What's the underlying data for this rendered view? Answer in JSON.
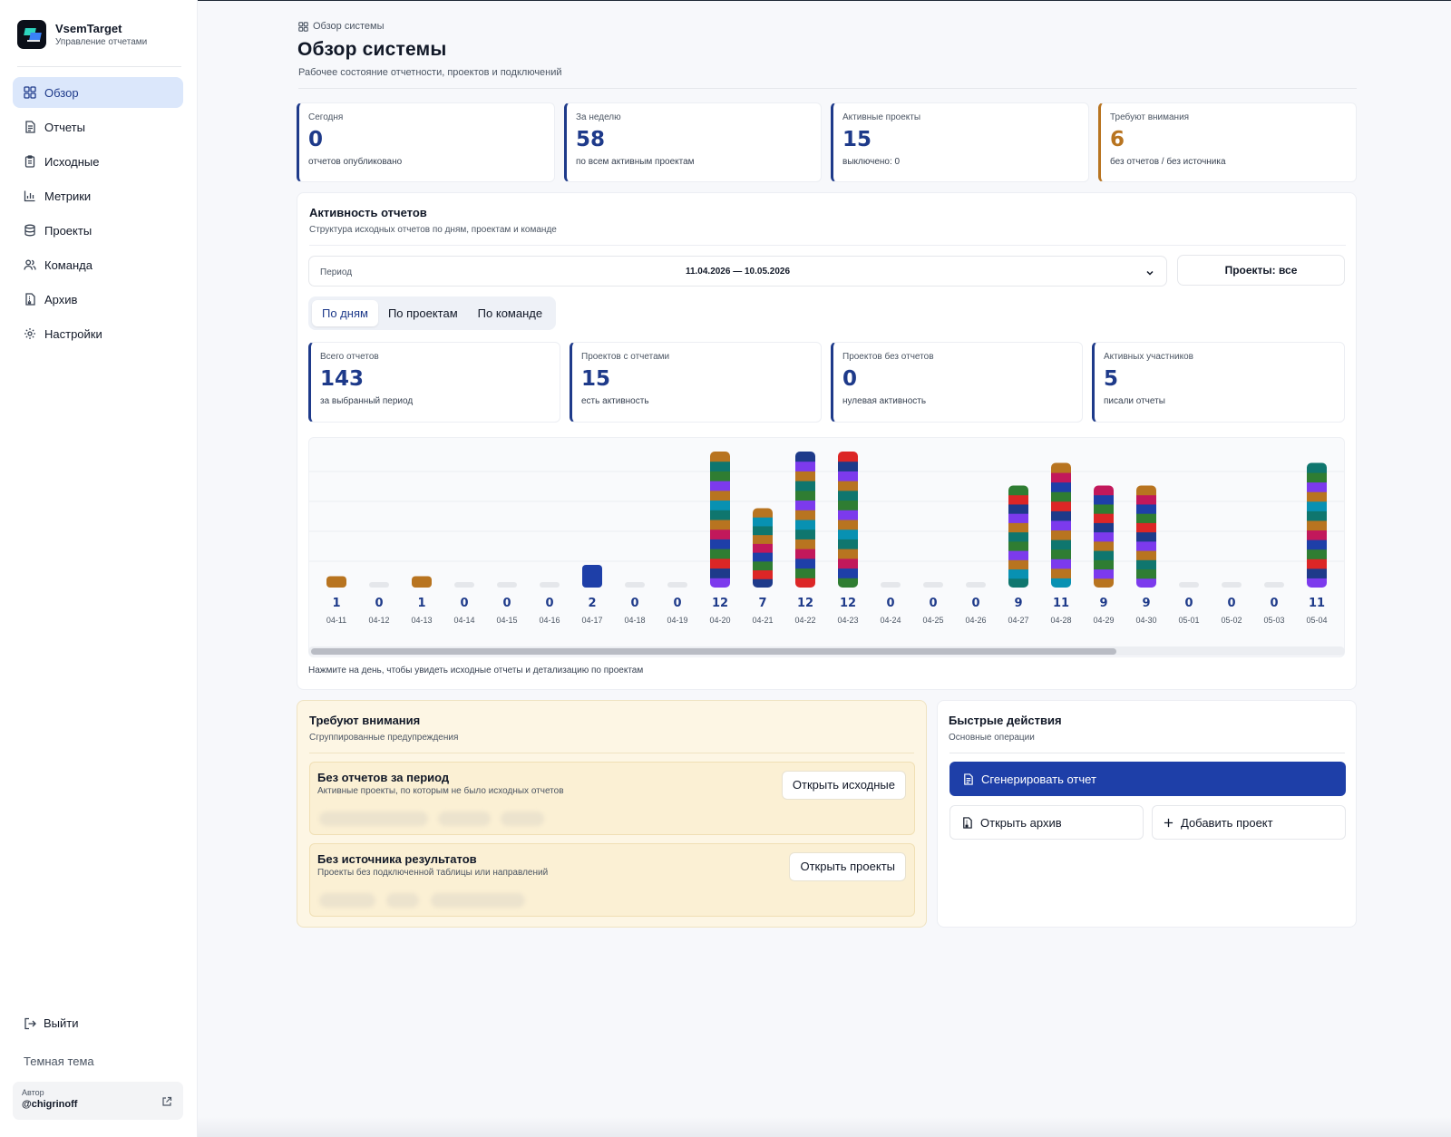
{
  "brand": {
    "name": "VsemTarget",
    "subtitle": "Управление отчетами"
  },
  "sidebar": {
    "items": [
      {
        "label": "Обзор",
        "icon": "grid-icon",
        "active": true
      },
      {
        "label": "Отчеты",
        "icon": "document-icon"
      },
      {
        "label": "Исходные",
        "icon": "clipboard-icon"
      },
      {
        "label": "Метрики",
        "icon": "bar-chart-icon"
      },
      {
        "label": "Проекты",
        "icon": "database-icon"
      },
      {
        "label": "Команда",
        "icon": "users-icon"
      },
      {
        "label": "Архив",
        "icon": "archive-file-icon"
      },
      {
        "label": "Настройки",
        "icon": "gear-icon"
      }
    ],
    "logout": "Выйти",
    "theme": "Темная тема",
    "author_label": "Автор",
    "author_name": "@chigrinoff"
  },
  "header": {
    "breadcrumb": "Обзор системы",
    "title": "Обзор системы",
    "subtitle": "Рабочее состояние отчетности, проектов и подключений"
  },
  "kpis": [
    {
      "label": "Сегодня",
      "value": "0",
      "sub": "отчетов опубликовано"
    },
    {
      "label": "За неделю",
      "value": "58",
      "sub": "по всем активным проектам"
    },
    {
      "label": "Активные проекты",
      "value": "15",
      "sub": "выключено: 0"
    },
    {
      "label": "Требуют внимания",
      "value": "6",
      "sub": "без отчетов / без источника"
    }
  ],
  "activity": {
    "title": "Активность отчетов",
    "subtitle": "Структура исходных отчетов по дням, проектам и команде",
    "period_label": "Период",
    "period_value": "11.04.2026 — 10.05.2026",
    "projects_button": "Проекты: все",
    "tabs": [
      "По дням",
      "По проектам",
      "По команде"
    ],
    "stats": [
      {
        "label": "Всего отчетов",
        "value": "143",
        "sub": "за выбранный период"
      },
      {
        "label": "Проектов с отчетами",
        "value": "15",
        "sub": "есть активность"
      },
      {
        "label": "Проектов без отчетов",
        "value": "0",
        "sub": "нулевая активность"
      },
      {
        "label": "Активных участников",
        "value": "5",
        "sub": "писали отчеты"
      }
    ],
    "hint": "Нажмите на день, чтобы увидеть исходные отчеты и детализацию по проектам"
  },
  "chart_data": {
    "type": "bar",
    "stacked": true,
    "categories": [
      "04-11",
      "04-12",
      "04-13",
      "04-14",
      "04-15",
      "04-16",
      "04-17",
      "04-18",
      "04-19",
      "04-20",
      "04-21",
      "04-22",
      "04-23",
      "04-24",
      "04-25",
      "04-26",
      "04-27",
      "04-28",
      "04-29",
      "04-30",
      "05-01",
      "05-02",
      "05-03",
      "05-04"
    ],
    "values": [
      1,
      0,
      1,
      0,
      0,
      0,
      2,
      0,
      0,
      12,
      7,
      12,
      12,
      0,
      0,
      0,
      9,
      11,
      9,
      9,
      0,
      0,
      0,
      11
    ],
    "ylim": [
      0,
      12
    ],
    "grid": true,
    "segment_colors": [
      "#c2185b",
      "#b87420",
      "#0f766e",
      "#0891b2",
      "#b87420",
      "#7c3aed",
      "#2f7d32",
      "#0f766e",
      "#b87420",
      "#7c3aed",
      "#1e3a8a",
      "#dc2626",
      "#2f7d32",
      "#1e3fa8"
    ],
    "empty_color": "#e5e7eb",
    "single_colors": {
      "04-11": "#b87420",
      "04-13": "#b87420",
      "04-17": "#1e3fa8"
    },
    "value_color": "#1e3a8a"
  },
  "attention": {
    "title": "Требуют внимания",
    "subtitle": "Сгруппированные предупреждения",
    "items": [
      {
        "title": "Без отчетов за период",
        "sub": "Активные проекты, по которым не было исходных отчетов",
        "button": "Открыть исходные"
      },
      {
        "title": "Без источника результатов",
        "sub": "Проекты без подключенной таблицы или направлений",
        "button": "Открыть проекты"
      }
    ]
  },
  "quick": {
    "title": "Быстрые действия",
    "subtitle": "Основные операции",
    "generate": "Сгенерировать отчет",
    "archive": "Открыть архив",
    "add_project": "Добавить проект"
  },
  "colors": {
    "accent": "#1e3a8a",
    "primary_button": "#1e3fa8",
    "warning": "#b87420",
    "nav_active_bg": "#dbe7fb",
    "attention_bg": "#fdf6e4"
  }
}
